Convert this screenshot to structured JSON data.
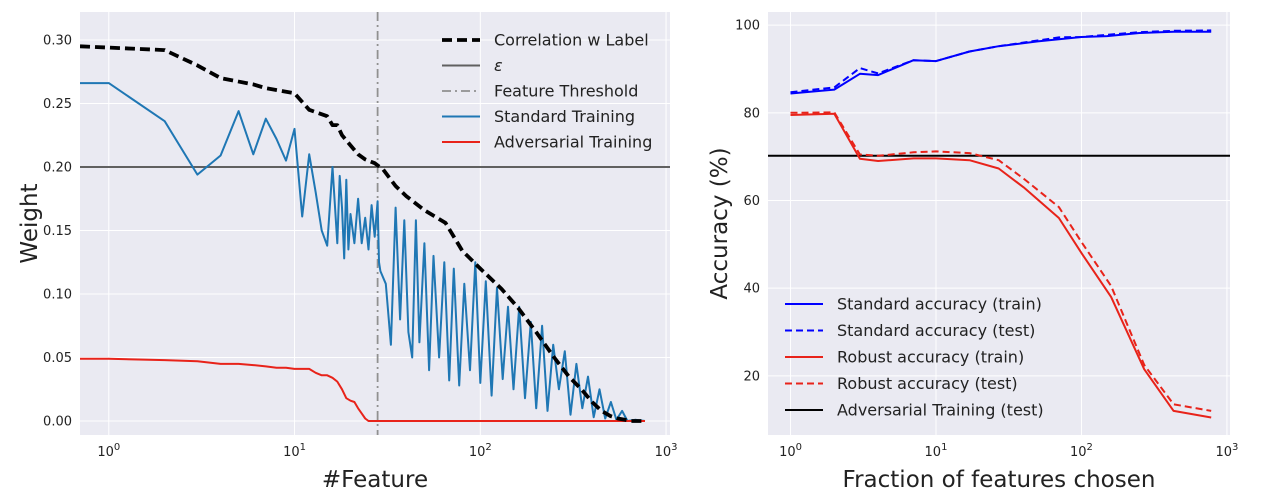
{
  "chart_data": [
    {
      "type": "line",
      "xlabel": "#Feature",
      "ylabel": "Weight",
      "xscale": "log",
      "xlim": [
        0.7,
        1050
      ],
      "ylim": [
        -0.011,
        0.322
      ],
      "grid": true,
      "legend_position": "top-right",
      "xticks": [
        {
          "value": 1,
          "label": "10",
          "exp": "0"
        },
        {
          "value": 10,
          "label": "10",
          "exp": "1"
        },
        {
          "value": 100,
          "label": "10",
          "exp": "2"
        },
        {
          "value": 1000,
          "label": "10",
          "exp": "3"
        }
      ],
      "yticks": [
        {
          "value": 0.0,
          "label": "0.00"
        },
        {
          "value": 0.05,
          "label": "0.05"
        },
        {
          "value": 0.1,
          "label": "0.10"
        },
        {
          "value": 0.15,
          "label": "0.15"
        },
        {
          "value": 0.2,
          "label": "0.20"
        },
        {
          "value": 0.25,
          "label": "0.25"
        },
        {
          "value": 0.3,
          "label": "0.30"
        }
      ],
      "hlines": [
        {
          "name": "ε",
          "y": 0.2,
          "color": "#606060"
        }
      ],
      "vlines": [
        {
          "name": "Feature Threshold",
          "x": 28,
          "color": "#909090",
          "style": "dashdot"
        }
      ],
      "series": [
        {
          "name": "Correlation w Label",
          "color": "#000000",
          "style": "dashed",
          "x": [
            0.7,
            1,
            2,
            3,
            4,
            6,
            7,
            10,
            12,
            15,
            16,
            17,
            18,
            20,
            22,
            24,
            27,
            30,
            35,
            40,
            50,
            65,
            80,
            100,
            130,
            160,
            200,
            250,
            300,
            350,
            400,
            450,
            500,
            550,
            600,
            650,
            700,
            770
          ],
          "y": [
            0.295,
            0.294,
            0.292,
            0.28,
            0.27,
            0.265,
            0.262,
            0.258,
            0.245,
            0.24,
            0.233,
            0.233,
            0.225,
            0.217,
            0.21,
            0.206,
            0.203,
            0.198,
            0.185,
            0.177,
            0.166,
            0.156,
            0.134,
            0.12,
            0.104,
            0.089,
            0.07,
            0.05,
            0.035,
            0.025,
            0.015,
            0.008,
            0.004,
            0.002,
            0.001,
            0.0,
            0.0,
            0.0
          ]
        },
        {
          "name": "Standard Training",
          "color": "#1f77b4",
          "style": "solid",
          "x": [
            0.7,
            1,
            2,
            3,
            4,
            5,
            6,
            7,
            8,
            9,
            10,
            11,
            12,
            13,
            14,
            15,
            16,
            17,
            17.5,
            18,
            18.5,
            19,
            19.5,
            20,
            21,
            22,
            23,
            24,
            25,
            26,
            27,
            28,
            28.5,
            29,
            31,
            33,
            35,
            37,
            39,
            41,
            43,
            45,
            47,
            50,
            53,
            56,
            60,
            64,
            68,
            72,
            77,
            82,
            88,
            94,
            100,
            107,
            115,
            123,
            132,
            141,
            151,
            162,
            174,
            187,
            200,
            215,
            230,
            247,
            265,
            285,
            306,
            329,
            354,
            380,
            408,
            438,
            470,
            505,
            540,
            580,
            620,
            680,
            770
          ],
          "y": [
            0.266,
            0.266,
            0.236,
            0.194,
            0.209,
            0.244,
            0.21,
            0.238,
            0.222,
            0.205,
            0.23,
            0.161,
            0.21,
            0.18,
            0.15,
            0.138,
            0.2,
            0.14,
            0.193,
            0.168,
            0.128,
            0.19,
            0.135,
            0.163,
            0.14,
            0.175,
            0.14,
            0.16,
            0.135,
            0.17,
            0.145,
            0.173,
            0.125,
            0.118,
            0.108,
            0.06,
            0.168,
            0.08,
            0.158,
            0.07,
            0.05,
            0.158,
            0.062,
            0.14,
            0.04,
            0.13,
            0.05,
            0.125,
            0.032,
            0.12,
            0.028,
            0.108,
            0.04,
            0.125,
            0.03,
            0.11,
            0.02,
            0.105,
            0.033,
            0.09,
            0.025,
            0.09,
            0.018,
            0.078,
            0.01,
            0.075,
            0.008,
            0.06,
            0.025,
            0.055,
            0.005,
            0.045,
            0.01,
            0.035,
            0.003,
            0.025,
            0.002,
            0.015,
            0.001,
            0.008,
            0.0,
            0.001,
            0.0
          ]
        },
        {
          "name": "Adversarial Training",
          "color": "#e8231a",
          "style": "solid",
          "x": [
            0.7,
            1,
            2,
            3,
            4,
            5,
            6,
            7,
            8,
            9,
            10,
            12,
            13,
            14,
            15,
            16,
            17,
            18,
            19,
            20,
            21,
            22,
            23,
            24,
            25,
            28,
            50,
            100,
            300,
            770
          ],
          "y": [
            0.049,
            0.049,
            0.048,
            0.047,
            0.045,
            0.045,
            0.044,
            0.043,
            0.042,
            0.042,
            0.041,
            0.041,
            0.038,
            0.036,
            0.036,
            0.034,
            0.031,
            0.025,
            0.018,
            0.016,
            0.015,
            0.01,
            0.006,
            0.002,
            0.0,
            0.0,
            0.0,
            0.0,
            0.0,
            0.0
          ]
        }
      ]
    },
    {
      "type": "line",
      "xlabel": "Fraction of features chosen",
      "ylabel": "Accuracy (%)",
      "xscale": "log",
      "xlim": [
        0.7,
        1050
      ],
      "ylim": [
        6.5,
        103
      ],
      "grid": true,
      "legend_position": "bottom-left",
      "xticks": [
        {
          "value": 1,
          "label": "10",
          "exp": "0"
        },
        {
          "value": 10,
          "label": "10",
          "exp": "1"
        },
        {
          "value": 100,
          "label": "10",
          "exp": "2"
        },
        {
          "value": 1000,
          "label": "10",
          "exp": "3"
        }
      ],
      "yticks": [
        {
          "value": 20,
          "label": "20"
        },
        {
          "value": 40,
          "label": "40"
        },
        {
          "value": 60,
          "label": "60"
        },
        {
          "value": 80,
          "label": "80"
        },
        {
          "value": 100,
          "label": "100"
        }
      ],
      "series": [
        {
          "name": "Standard accuracy (train)",
          "color": "#0000ff",
          "style": "solid",
          "x": [
            1,
            2,
            3,
            4,
            7,
            10,
            17,
            27,
            50,
            70,
            100,
            150,
            250,
            430,
            780
          ],
          "y": [
            84.4,
            85.3,
            88.9,
            88.6,
            92.0,
            91.8,
            94.0,
            95.2,
            96.3,
            96.8,
            97.3,
            97.5,
            98.2,
            98.5,
            98.5
          ]
        },
        {
          "name": "Standard accuracy (test)",
          "color": "#0000ff",
          "style": "dashed",
          "x": [
            1,
            2,
            3,
            4,
            7,
            10,
            17,
            27,
            50,
            70,
            100,
            150,
            250,
            430,
            780
          ],
          "y": [
            84.7,
            85.8,
            90.2,
            89.0,
            92.0,
            91.8,
            94.0,
            95.2,
            96.5,
            97.2,
            97.3,
            97.8,
            98.4,
            98.7,
            98.8
          ]
        },
        {
          "name": "Robust accuracy (train)",
          "color": "#e8231a",
          "style": "solid",
          "x": [
            1,
            2,
            3,
            4,
            7,
            10,
            17,
            27,
            40,
            70,
            100,
            160,
            270,
            430,
            780
          ],
          "y": [
            79.5,
            79.8,
            69.5,
            69.0,
            69.6,
            69.6,
            69.2,
            67.3,
            63.0,
            56.0,
            48.0,
            38.0,
            21.5,
            12.0,
            10.5
          ]
        },
        {
          "name": "Robust accuracy (test)",
          "color": "#e8231a",
          "style": "dashed",
          "x": [
            1,
            2,
            3,
            4,
            7,
            10,
            17,
            27,
            40,
            70,
            100,
            160,
            270,
            430,
            780
          ],
          "y": [
            80.0,
            80.1,
            70.5,
            70.2,
            71.0,
            71.2,
            70.8,
            69.2,
            65.0,
            58.5,
            50.5,
            40.5,
            22.5,
            13.5,
            12.0
          ]
        }
      ],
      "hlines": [
        {
          "name": "Adversarial Training (test)",
          "y": 70.2,
          "color": "#000000"
        }
      ]
    }
  ]
}
